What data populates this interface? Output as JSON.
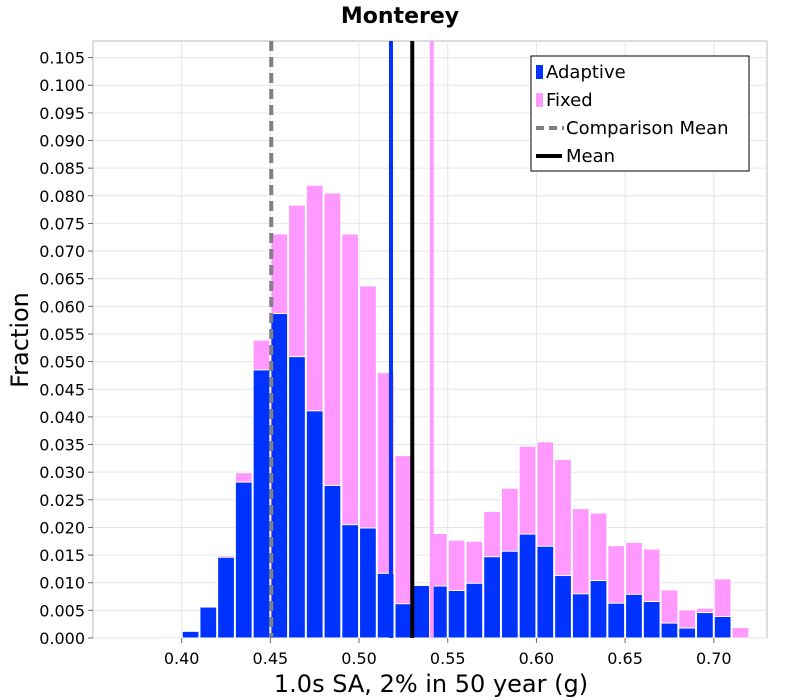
{
  "chart_data": {
    "type": "bar",
    "title": "Monterey",
    "xlabel": "1.0s SA, 2% in 50 year (g)",
    "ylabel": "Fraction",
    "xlim": [
      0.35,
      0.73
    ],
    "ylim": [
      0.0,
      0.108
    ],
    "bin_width": 0.01,
    "grid": true,
    "legend_position": "top-right",
    "x_ticks": [
      "0.40",
      "0.45",
      "0.50",
      "0.55",
      "0.60",
      "0.65",
      "0.70"
    ],
    "x_tick_values": [
      0.4,
      0.45,
      0.5,
      0.55,
      0.6,
      0.65,
      0.7
    ],
    "y_ticks": [
      "0.000",
      "0.005",
      "0.010",
      "0.015",
      "0.020",
      "0.025",
      "0.030",
      "0.035",
      "0.040",
      "0.045",
      "0.050",
      "0.055",
      "0.060",
      "0.065",
      "0.070",
      "0.075",
      "0.080",
      "0.085",
      "0.090",
      "0.095",
      "0.100",
      "0.105"
    ],
    "y_tick_values": [
      0.0,
      0.005,
      0.01,
      0.015,
      0.02,
      0.025,
      0.03,
      0.035,
      0.04,
      0.045,
      0.05,
      0.055,
      0.06,
      0.065,
      0.07,
      0.075,
      0.08,
      0.085,
      0.09,
      0.095,
      0.1,
      0.105
    ],
    "bin_centers": [
      0.395,
      0.405,
      0.415,
      0.425,
      0.435,
      0.445,
      0.455,
      0.465,
      0.475,
      0.485,
      0.495,
      0.505,
      0.515,
      0.525,
      0.535,
      0.545,
      0.555,
      0.565,
      0.575,
      0.585,
      0.595,
      0.605,
      0.615,
      0.625,
      0.635,
      0.645,
      0.655,
      0.665,
      0.675,
      0.685,
      0.695,
      0.705,
      0.715
    ],
    "series": [
      {
        "name": "Fixed",
        "color": "#ff99ff",
        "values": [
          0.0003,
          0.0011,
          0.0057,
          0.0149,
          0.0299,
          0.0539,
          0.0731,
          0.0783,
          0.0819,
          0.0805,
          0.0731,
          0.0637,
          0.048,
          0.033,
          0.0063,
          0.0189,
          0.0177,
          0.0175,
          0.0229,
          0.0271,
          0.0347,
          0.0355,
          0.0323,
          0.0234,
          0.0226,
          0.0167,
          0.0173,
          0.0161,
          0.0087,
          0.0051,
          0.0054,
          0.0107,
          0.0019
        ]
      },
      {
        "name": "Adaptive",
        "color": "#0033ff",
        "values": [
          0.0002,
          0.0012,
          0.0056,
          0.0146,
          0.0282,
          0.0485,
          0.0587,
          0.0509,
          0.0411,
          0.0276,
          0.0205,
          0.0199,
          0.0117,
          0.0062,
          0.0095,
          0.0094,
          0.0086,
          0.0099,
          0.0147,
          0.0157,
          0.0188,
          0.0166,
          0.0113,
          0.008,
          0.0104,
          0.0063,
          0.0079,
          0.0066,
          0.0027,
          0.0018,
          0.0046,
          0.0039,
          0.0
        ]
      }
    ],
    "vertical_lines": [
      {
        "name": "Comparison Mean",
        "x": 0.4505,
        "color": "#808080",
        "style": "dashed"
      },
      {
        "name": "Mean",
        "x": 0.53,
        "color": "#000000",
        "style": "solid"
      },
      {
        "name": "Adaptive",
        "x": 0.518,
        "color": "#0033ff",
        "style": "solid"
      },
      {
        "name": "Fixed",
        "x": 0.541,
        "color": "#ff99ff",
        "style": "solid"
      }
    ],
    "legend": [
      {
        "label": "Adaptive",
        "color": "#0033ff",
        "kind": "bar"
      },
      {
        "label": "Fixed",
        "color": "#ff99ff",
        "kind": "bar"
      },
      {
        "label": "Comparison Mean",
        "color": "#808080",
        "kind": "dashed"
      },
      {
        "label": "Mean",
        "color": "#000000",
        "kind": "line"
      }
    ]
  }
}
